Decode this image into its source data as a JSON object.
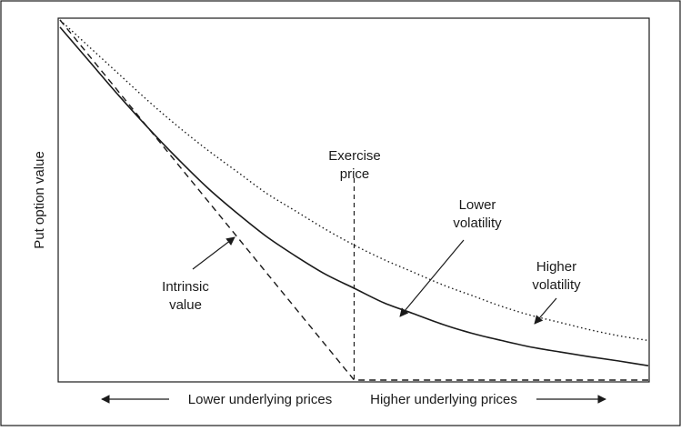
{
  "chart_data": {
    "type": "line",
    "title": "",
    "ylabel": "Put option value",
    "xlabel": {
      "left": "Lower underlying prices",
      "right": "Higher underlying prices"
    },
    "xlim": [
      0,
      100
    ],
    "ylim": [
      0,
      100
    ],
    "grid": false,
    "legend": "none",
    "exercise_price": 50,
    "series": [
      {
        "key": "intrinsic",
        "style": "dashed",
        "x": [
          0,
          50,
          100
        ],
        "values": [
          100,
          0,
          0
        ]
      },
      {
        "key": "lower",
        "style": "solid",
        "x": [
          0,
          5,
          10,
          15,
          20,
          25,
          30,
          35,
          40,
          45,
          50,
          55,
          60,
          65,
          70,
          75,
          80,
          85,
          90,
          95,
          100
        ],
        "values": [
          98,
          88.5,
          79,
          70,
          61.5,
          53.5,
          46.5,
          40,
          34.5,
          29.5,
          25.5,
          21.5,
          18.5,
          15.5,
          13,
          11,
          9.2,
          7.8,
          6.5,
          5.3,
          4
        ]
      },
      {
        "key": "higher",
        "style": "dotted",
        "x": [
          0,
          5,
          10,
          15,
          20,
          25,
          30,
          35,
          40,
          45,
          50,
          55,
          60,
          65,
          70,
          75,
          80,
          85,
          90,
          95,
          100
        ],
        "values": [
          100,
          92.5,
          85,
          77.5,
          70.5,
          64,
          58,
          52,
          47,
          42,
          37.5,
          33.5,
          30,
          26.5,
          23.5,
          20.5,
          18,
          16,
          14,
          12.3,
          11
        ]
      }
    ],
    "annotations": {
      "exercise": "Exercise\nprice",
      "lower": "Lower\nvolatility",
      "higher": "Higher\nvolatility",
      "intrinsic": "Intrinsic\nvalue"
    }
  }
}
